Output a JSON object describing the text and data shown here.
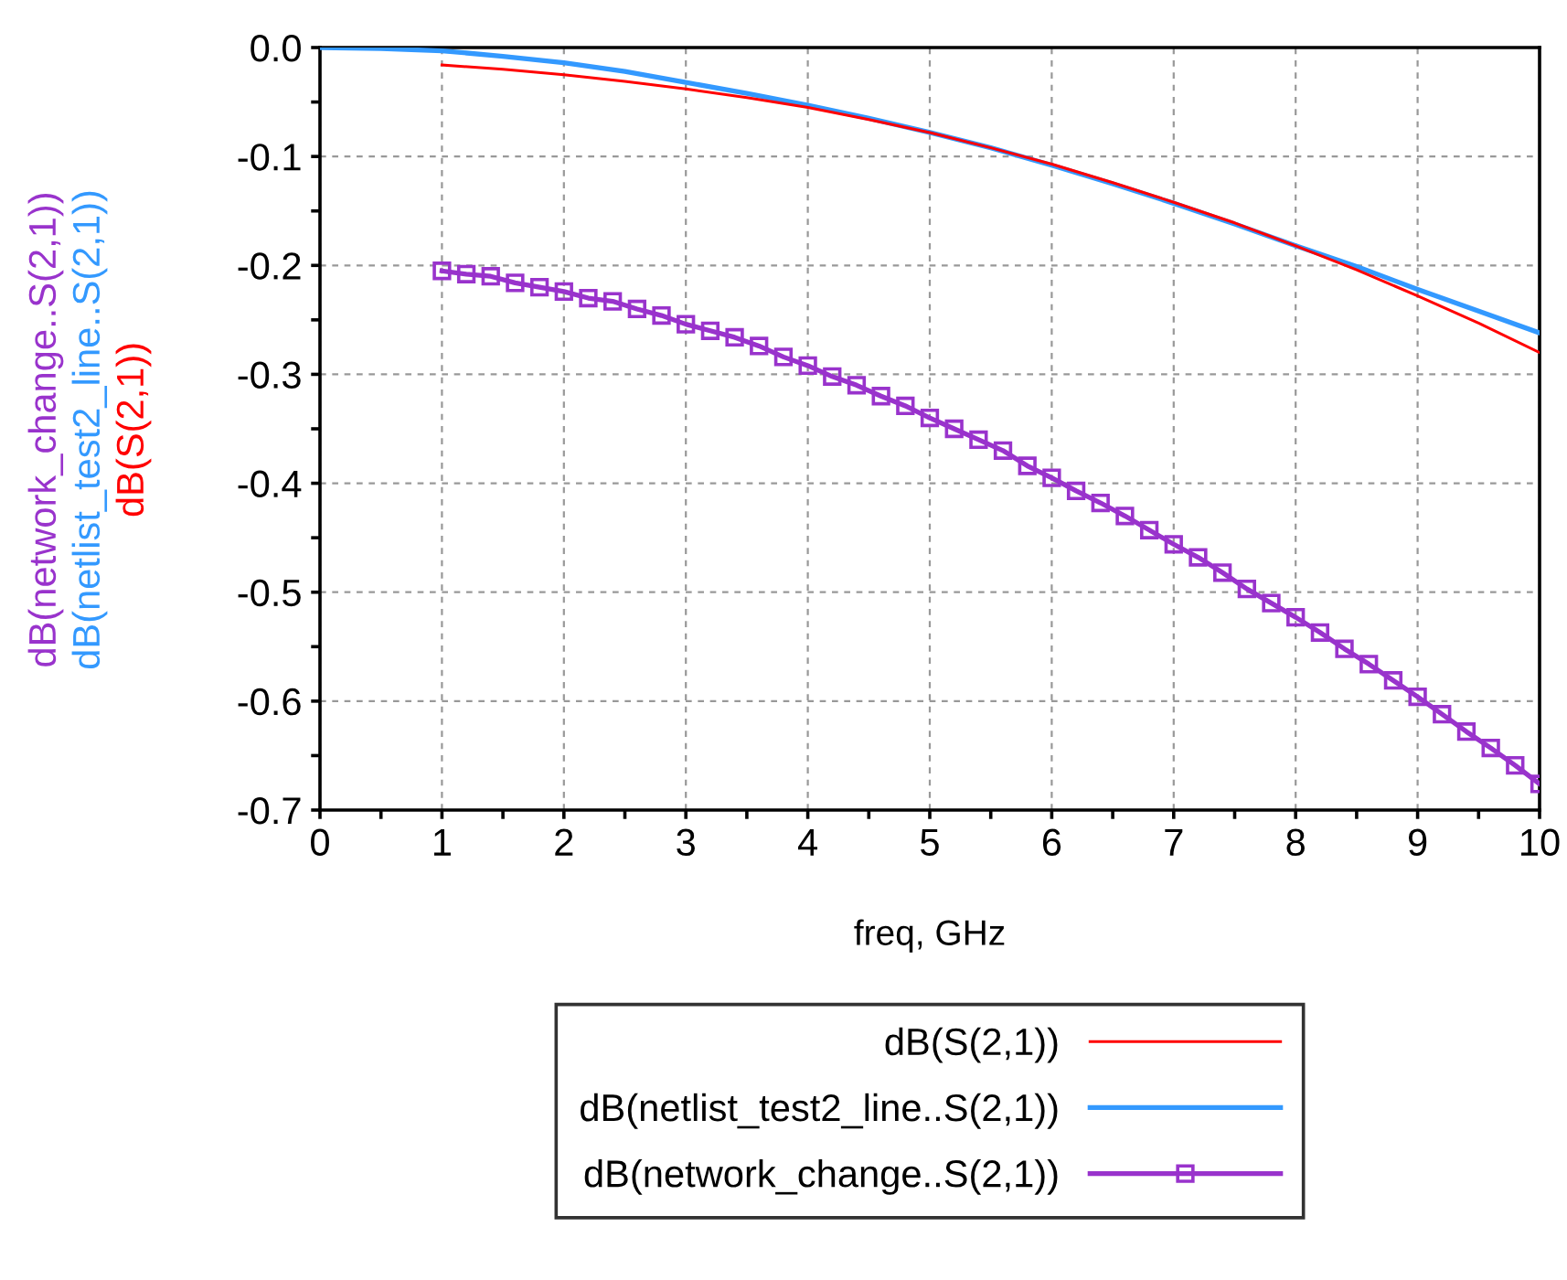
{
  "chart_data": {
    "type": "line",
    "xlabel": "freq, GHz",
    "ylabel": [
      "dB(network_change..S(2,1))",
      "dB(netlist_test2_line..S(2,1))",
      "dB(S(2,1))"
    ],
    "xlim": [
      0,
      10
    ],
    "ylim": [
      -0.7,
      0.0
    ],
    "xticks": [
      0,
      {
        "value": 0.5,
        "label": null
      },
      1,
      {
        "value": 1.5,
        "label": null
      },
      2,
      {
        "value": 2.5,
        "label": null
      },
      3,
      {
        "value": 3.5,
        "label": null
      },
      4,
      {
        "value": 4.5,
        "label": null
      },
      5,
      {
        "value": 5.5,
        "label": null
      },
      6,
      {
        "value": 6.5,
        "label": null
      },
      7,
      {
        "value": 7.5,
        "label": null
      },
      8,
      {
        "value": 8.5,
        "label": null
      },
      9,
      {
        "value": 9.5,
        "label": null
      },
      10
    ],
    "yticks": [
      {
        "value": -0.7,
        "label": "-0.7"
      },
      {
        "value": -0.65,
        "label": null
      },
      {
        "value": -0.6,
        "label": "-0.6"
      },
      {
        "value": -0.55,
        "label": null
      },
      {
        "value": -0.5,
        "label": "-0.5"
      },
      {
        "value": -0.45,
        "label": null
      },
      {
        "value": -0.4,
        "label": "-0.4"
      },
      {
        "value": -0.35,
        "label": null
      },
      {
        "value": -0.3,
        "label": "-0.3"
      },
      {
        "value": -0.25,
        "label": null
      },
      {
        "value": -0.2,
        "label": "-0.2"
      },
      {
        "value": -0.15,
        "label": null
      },
      {
        "value": -0.1,
        "label": "-0.1"
      },
      {
        "value": -0.05,
        "label": null
      },
      {
        "value": 0.0,
        "label": "0.0"
      }
    ],
    "grid": true,
    "legend": "bottom",
    "series": [
      {
        "name": "dB(S(2,1))",
        "color": "#ff0000",
        "marker": "none",
        "line_style": "solid",
        "x": [
          1,
          1.5,
          2,
          2.5,
          3,
          3.5,
          4,
          4.5,
          5,
          5.5,
          6,
          6.5,
          7,
          7.5,
          8,
          8.5,
          9,
          9.5,
          10
        ],
        "values": [
          -0.016,
          -0.02,
          -0.025,
          -0.031,
          -0.038,
          -0.046,
          -0.055,
          -0.066,
          -0.078,
          -0.092,
          -0.107,
          -0.124,
          -0.142,
          -0.161,
          -0.182,
          -0.204,
          -0.228,
          -0.253,
          -0.28
        ]
      },
      {
        "name": "dB(netlist_test2_line..S(2,1))",
        "color": "#3399ff",
        "marker": "none",
        "line_style": "solid",
        "x": [
          0,
          0.5,
          1,
          1.5,
          2,
          2.5,
          3,
          3.5,
          4,
          4.5,
          5,
          5.5,
          6,
          6.5,
          7,
          7.5,
          8,
          8.5,
          9,
          9.5,
          10
        ],
        "values": [
          0.0,
          -0.001,
          -0.003,
          -0.008,
          -0.014,
          -0.022,
          -0.032,
          -0.042,
          -0.053,
          -0.065,
          -0.078,
          -0.092,
          -0.108,
          -0.125,
          -0.143,
          -0.162,
          -0.182,
          -0.201,
          -0.222,
          -0.242,
          -0.262
        ]
      },
      {
        "name": "dB(network_change..S(2,1))",
        "color": "#9933cc",
        "marker": "square",
        "line_style": "solid",
        "x": [
          1,
          1.2,
          1.4,
          1.6,
          1.8,
          2,
          2.2,
          2.4,
          2.6,
          2.8,
          3,
          3.2,
          3.4,
          3.6,
          3.8,
          4,
          4.2,
          4.4,
          4.6,
          4.8,
          5,
          5.2,
          5.4,
          5.6,
          5.8,
          6,
          6.2,
          6.4,
          6.6,
          6.8,
          7,
          7.2,
          7.4,
          7.6,
          7.8,
          8,
          8.2,
          8.4,
          8.6,
          8.8,
          9,
          9.2,
          9.4,
          9.6,
          9.8,
          10
        ],
        "values": [
          -0.205,
          -0.208,
          -0.21,
          -0.216,
          -0.22,
          -0.224,
          -0.23,
          -0.233,
          -0.24,
          -0.246,
          -0.254,
          -0.26,
          -0.266,
          -0.274,
          -0.284,
          -0.292,
          -0.302,
          -0.31,
          -0.32,
          -0.329,
          -0.34,
          -0.35,
          -0.36,
          -0.37,
          -0.384,
          -0.395,
          -0.407,
          -0.418,
          -0.43,
          -0.443,
          -0.456,
          -0.468,
          -0.482,
          -0.497,
          -0.51,
          -0.523,
          -0.537,
          -0.552,
          -0.566,
          -0.581,
          -0.596,
          -0.612,
          -0.628,
          -0.643,
          -0.659,
          -0.676
        ]
      }
    ]
  }
}
